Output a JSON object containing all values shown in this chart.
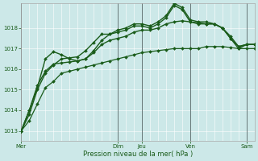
{
  "xlabel": "Pression niveau de la mer( hPa )",
  "bg_color": "#cce8e8",
  "grid_color": "#ffffff",
  "line_color": "#1a5c1a",
  "ylim": [
    1012.5,
    1019.2
  ],
  "yticks": [
    1013,
    1014,
    1015,
    1016,
    1017,
    1018
  ],
  "series": [
    [
      1013.0,
      1013.5,
      1014.3,
      1015.1,
      1015.4,
      1015.8,
      1015.9,
      1016.0,
      1016.1,
      1016.2,
      1016.3,
      1016.4,
      1016.5,
      1016.6,
      1016.7,
      1016.8,
      1016.85,
      1016.9,
      1016.95,
      1017.0,
      1017.0,
      1017.0,
      1017.0,
      1017.1,
      1017.1,
      1017.1,
      1017.05,
      1017.0,
      1017.0,
      1017.0
    ],
    [
      1013.0,
      1013.8,
      1015.0,
      1015.8,
      1016.2,
      1016.5,
      1016.55,
      1016.6,
      1016.9,
      1017.3,
      1017.7,
      1017.7,
      1017.8,
      1017.9,
      1018.1,
      1018.1,
      1018.0,
      1018.2,
      1018.5,
      1019.1,
      1018.9,
      1018.3,
      1018.2,
      1018.2,
      1018.2,
      1018.0,
      1017.5,
      1017.1,
      1017.2,
      1017.2
    ],
    [
      1013.0,
      1014.0,
      1015.1,
      1016.5,
      1016.85,
      1016.7,
      1016.5,
      1016.4,
      1016.5,
      1016.9,
      1017.4,
      1017.7,
      1017.9,
      1018.0,
      1018.2,
      1018.2,
      1018.1,
      1018.3,
      1018.6,
      1019.2,
      1019.0,
      1018.4,
      1018.3,
      1018.3,
      1018.2,
      1018.0,
      1017.6,
      1017.1,
      1017.2,
      1017.2
    ],
    [
      1013.0,
      1014.0,
      1015.2,
      1015.9,
      1016.25,
      1016.3,
      1016.35,
      1016.4,
      1016.5,
      1016.8,
      1017.2,
      1017.4,
      1017.5,
      1017.6,
      1017.8,
      1017.9,
      1017.9,
      1018.0,
      1018.2,
      1018.3,
      1018.35,
      1018.3,
      1018.25,
      1018.2,
      1018.2,
      1018.0,
      1017.5,
      1017.0,
      1017.2,
      1017.2
    ]
  ],
  "n_points": 30,
  "xlim": [
    0,
    29
  ],
  "day_tick_positions": [
    0,
    12,
    15,
    21,
    28
  ],
  "day_tick_labels": [
    "Mer",
    "Dim",
    "Jeu",
    "Ven",
    "Sam"
  ],
  "figsize": [
    3.2,
    2.0
  ],
  "dpi": 100
}
